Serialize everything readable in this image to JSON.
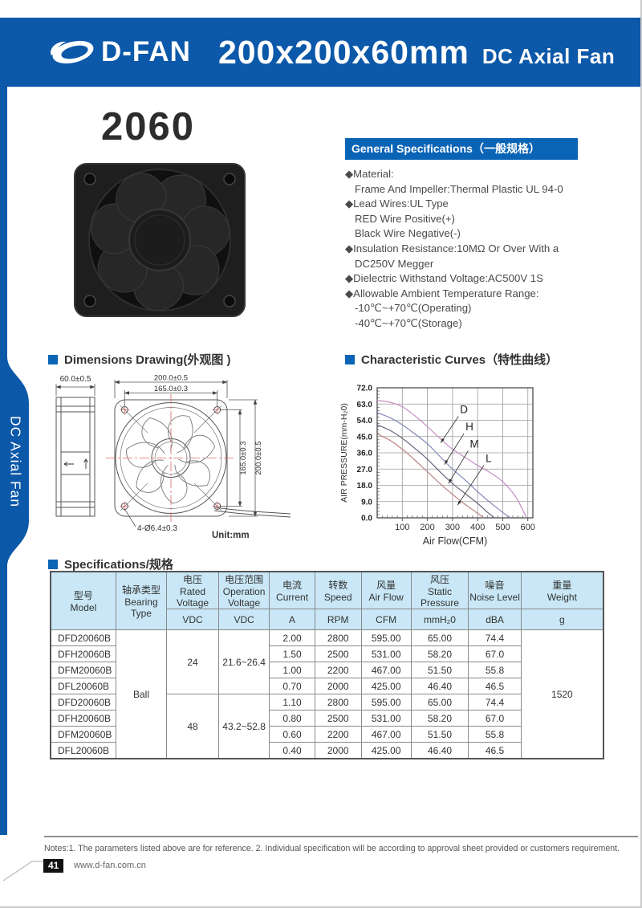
{
  "header": {
    "brand": "D-FAN",
    "title": "200x200x60mm",
    "subtitle": "DC Axial Fan"
  },
  "sidebar_label": "DC Axial Fan",
  "model_number": "2060",
  "colors": {
    "brand_blue": "#0c58a9",
    "section_blue": "#0a64b6",
    "table_header_bg": "#c9e7f6"
  },
  "general": {
    "title": "General Specifications（一般规格）",
    "lines": [
      "◆Material:",
      "Frame And Impeller:Thermal Plastic UL 94-0",
      "◆Lead Wires:UL Type",
      "RED Wire Positive(+)",
      "Black Wire Negative(-)",
      "◆Insulation Resistance:10MΩ Or Over With a",
      "DC250V Megger",
      "◆Dielectric Withstand Voltage:AC500V 1S",
      "◆Allowable Ambient Temperature Range:",
      "-10℃~+70℃(Operating)",
      "-40℃~+70℃(Storage)"
    ]
  },
  "dims_section": {
    "title": "Dimensions Drawing(外观图 )",
    "unit": "Unit:mm",
    "labels": {
      "depth": "60.0±0.5",
      "width_outer": "200.0±0.5",
      "hole_pitch_h": "165.0±0.3",
      "hole_pitch_v": "165.0±0.3",
      "height_outer": "200.0±0.5",
      "holes": "4-Ø6.4±0.3"
    }
  },
  "curves_section": {
    "title": "Characteristic Curves（特性曲线）"
  },
  "spec_section": {
    "title": "Specifications/规格"
  },
  "chart_data": {
    "type": "line",
    "title": "Characteristic Curves（特性曲线）",
    "xlabel": "Air Flow(CFM)",
    "ylabel": "AIR PRESSURE(mm-H₂0)",
    "xlim": [
      0,
      620
    ],
    "ylim": [
      0,
      72
    ],
    "xticks": [
      100,
      200,
      300,
      400,
      500,
      600
    ],
    "yticks": [
      0,
      9,
      18,
      27,
      36,
      45,
      54,
      63,
      72
    ],
    "grid": true,
    "legend_position": "inline-labels",
    "series": [
      {
        "name": "D",
        "color": "#c98fc5",
        "points": [
          [
            0,
            65
          ],
          [
            50,
            64
          ],
          [
            100,
            61.5
          ],
          [
            150,
            56.5
          ],
          [
            200,
            50.5
          ],
          [
            250,
            44
          ],
          [
            300,
            38
          ],
          [
            350,
            33.5
          ],
          [
            400,
            29
          ],
          [
            450,
            25
          ],
          [
            500,
            20
          ],
          [
            550,
            12
          ],
          [
            595,
            0
          ]
        ]
      },
      {
        "name": "H",
        "color": "#8287b9",
        "points": [
          [
            0,
            58.2
          ],
          [
            50,
            55.5
          ],
          [
            100,
            51.5
          ],
          [
            150,
            46.5
          ],
          [
            200,
            41
          ],
          [
            250,
            34
          ],
          [
            300,
            27
          ],
          [
            350,
            21
          ],
          [
            400,
            14.5
          ],
          [
            450,
            8.5
          ],
          [
            500,
            3
          ],
          [
            531,
            0
          ]
        ]
      },
      {
        "name": "M",
        "color": "#66667a",
        "points": [
          [
            0,
            51.5
          ],
          [
            50,
            48.5
          ],
          [
            100,
            44
          ],
          [
            150,
            38.5
          ],
          [
            200,
            32.5
          ],
          [
            250,
            25.5
          ],
          [
            300,
            19
          ],
          [
            350,
            13.5
          ],
          [
            400,
            8
          ],
          [
            440,
            3
          ],
          [
            467,
            0
          ]
        ]
      },
      {
        "name": "L",
        "color": "#c08484",
        "points": [
          [
            0,
            46.4
          ],
          [
            50,
            43
          ],
          [
            100,
            38
          ],
          [
            150,
            32
          ],
          [
            200,
            25.5
          ],
          [
            250,
            19
          ],
          [
            300,
            13
          ],
          [
            350,
            7.5
          ],
          [
            400,
            2.5
          ],
          [
            425,
            0
          ]
        ]
      }
    ],
    "annotations": [
      {
        "text": "D",
        "tx": 330,
        "ty": 57.5,
        "ax": 253,
        "ay": 41.5
      },
      {
        "text": "H",
        "tx": 352,
        "ty": 48,
        "ax": 268,
        "ay": 29.5
      },
      {
        "text": "M",
        "tx": 369,
        "ty": 38.5,
        "ax": 284,
        "ay": 19
      },
      {
        "text": "L",
        "tx": 432,
        "ty": 30.5,
        "ax": 320,
        "ay": 7
      }
    ]
  },
  "table": {
    "header": [
      {
        "cn": "型号",
        "en": "Model"
      },
      {
        "cn": "轴承类型",
        "en": "Bearing Type"
      },
      {
        "cn": "电压",
        "en": "Rated Voltage",
        "unit": "VDC"
      },
      {
        "cn": "电压范围",
        "en": "Operation Voltage",
        "unit": "VDC"
      },
      {
        "cn": "电流",
        "en": "Current",
        "unit": "A"
      },
      {
        "cn": "转数",
        "en": "Speed",
        "unit": "RPM"
      },
      {
        "cn": "风量",
        "en": "Air Flow",
        "unit": "CFM"
      },
      {
        "cn": "风压",
        "en": "Static Pressure",
        "unit": "mmH₂0"
      },
      {
        "cn": "噪音",
        "en": "Noise Level",
        "unit": "dBA"
      },
      {
        "cn": "重量",
        "en": "Weight",
        "unit": "g"
      }
    ],
    "bearing": "Ball",
    "weight": "1520",
    "groups": [
      {
        "voltage": "24",
        "range": "21.6~26.4"
      },
      {
        "voltage": "48",
        "range": "43.2~52.8"
      }
    ],
    "rows": [
      {
        "model": "DFD20060B",
        "current": "2.00",
        "speed": "2800",
        "airflow": "595.00",
        "pressure": "65.00",
        "noise": "74.4"
      },
      {
        "model": "DFH20060B",
        "current": "1.50",
        "speed": "2500",
        "airflow": "531.00",
        "pressure": "58.20",
        "noise": "67.0"
      },
      {
        "model": "DFM20060B",
        "current": "1.00",
        "speed": "2200",
        "airflow": "467.00",
        "pressure": "51.50",
        "noise": "55.8"
      },
      {
        "model": "DFL20060B",
        "current": "0.70",
        "speed": "2000",
        "airflow": "425.00",
        "pressure": "46.40",
        "noise": "46.5"
      },
      {
        "model": "DFD20060B",
        "current": "1.10",
        "speed": "2800",
        "airflow": "595.00",
        "pressure": "65.00",
        "noise": "74.4"
      },
      {
        "model": "DFH20060B",
        "current": "0.80",
        "speed": "2500",
        "airflow": "531.00",
        "pressure": "58.20",
        "noise": "67.0"
      },
      {
        "model": "DFM20060B",
        "current": "0.60",
        "speed": "2200",
        "airflow": "467.00",
        "pressure": "51.50",
        "noise": "55.8"
      },
      {
        "model": "DFL20060B",
        "current": "0.40",
        "speed": "2000",
        "airflow": "425.00",
        "pressure": "46.40",
        "noise": "46.5"
      }
    ]
  },
  "notes": "Notes:1. The parameters listed above are for reference.   2. Individual specification will be according to approval sheet provided or customers requirement.",
  "footer": {
    "page": "41",
    "website": "www.d-fan.com.cn"
  }
}
